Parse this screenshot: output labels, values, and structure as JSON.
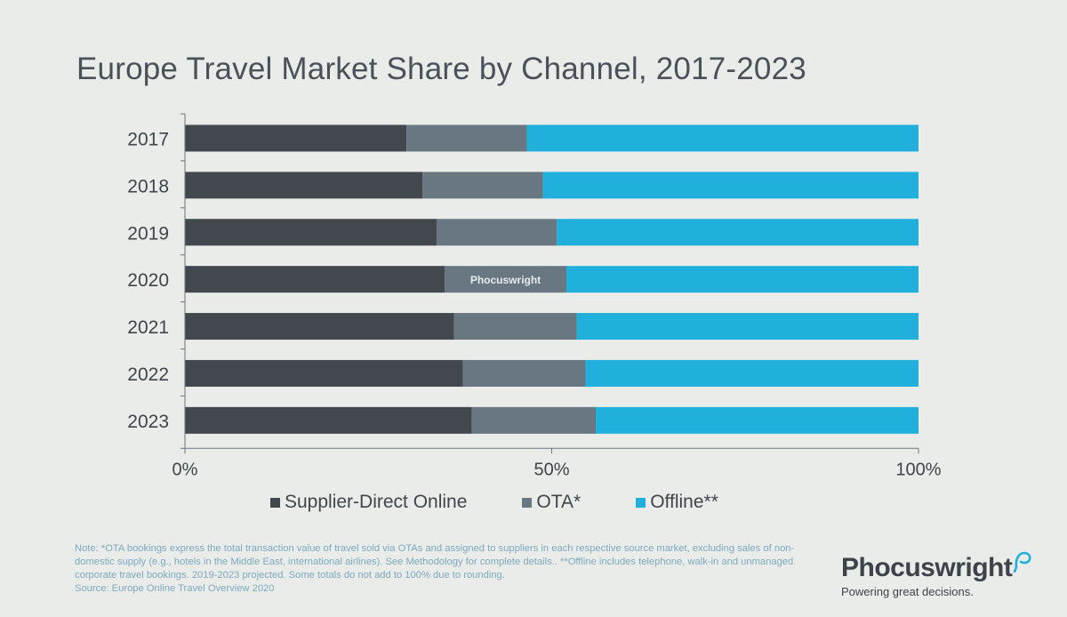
{
  "title": "Europe Travel Market Share by Channel, 2017-2023",
  "chart_data": {
    "type": "bar",
    "orientation": "horizontal",
    "stacked": true,
    "categories": [
      "2017",
      "2018",
      "2019",
      "2020",
      "2021",
      "2022",
      "2023"
    ],
    "series": [
      {
        "name": "Supplier-Direct Online",
        "values": [
          30.2,
          32.4,
          34.3,
          35.4,
          36.7,
          37.9,
          39.1
        ],
        "color": "#43484f"
      },
      {
        "name": "OTA*",
        "values": [
          16.4,
          16.4,
          16.4,
          16.6,
          16.7,
          16.7,
          16.9
        ],
        "color": "#697782"
      },
      {
        "name": "Offline**",
        "values": [
          53.4,
          51.2,
          49.3,
          48.0,
          46.6,
          45.4,
          44.0
        ],
        "color": "#21b0dc"
      }
    ],
    "x_ticks": [
      "0%",
      "50%",
      "100%"
    ],
    "xlim": [
      0,
      100
    ],
    "watermark": "Phocuswright",
    "legend_position": "bottom"
  },
  "note": "Note: *OTA bookings express the total transaction value of travel sold via OTAs and assigned to suppliers in each respective source market, excluding sales of non-domestic supply (e.g., hotels in the Middle East, international airlines). See Methodology for complete details.. **Offline includes telephone, walk-in and unmanaged corporate travel bookings. 2019-2023 projected. Some totals do not add to 100% due to rounding.",
  "source": "Source: Europe Online Travel Overview 2020",
  "logo": {
    "name": "Phocuswright",
    "tagline": "Powering great decisions."
  }
}
